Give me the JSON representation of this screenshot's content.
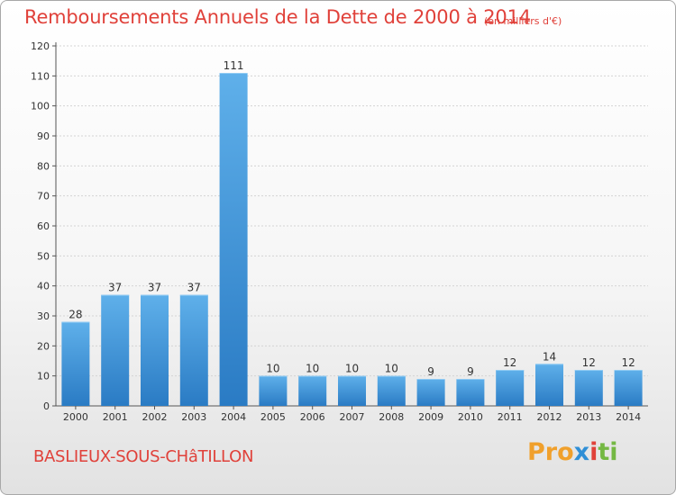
{
  "chart_data": {
    "type": "bar",
    "title": "Remboursements Annuels de la Dette de 2000 à 2014",
    "subtitle": "(en milliers d'€)",
    "categories": [
      "2000",
      "2001",
      "2002",
      "2003",
      "2004",
      "2005",
      "2006",
      "2007",
      "2008",
      "2009",
      "2010",
      "2011",
      "2012",
      "2013",
      "2014"
    ],
    "values": [
      28,
      37,
      37,
      37,
      111,
      10,
      10,
      10,
      10,
      9,
      9,
      12,
      14,
      12,
      12
    ],
    "ylim": [
      0,
      120
    ],
    "yticks": [
      0,
      10,
      20,
      30,
      40,
      50,
      60,
      70,
      80,
      90,
      100,
      110,
      120
    ],
    "grid": true,
    "bar_color": "#3a8fd6",
    "bar_highlight": "#5fb0ea"
  },
  "footer": {
    "place": "BASLIEUX-SOUS-CHâTILLON",
    "brand": [
      "Pro",
      "x",
      "i",
      "ti"
    ]
  },
  "colors": {
    "title": "#e0413a",
    "brand": [
      "#f0a02c",
      "#2f8fd6",
      "#e0413a",
      "#74b843"
    ]
  }
}
